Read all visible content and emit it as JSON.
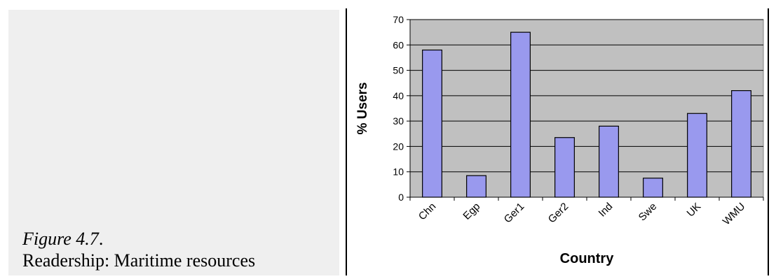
{
  "caption": {
    "figure": "Figure 4.7",
    "dot": ".",
    "text": "Readership: Maritime resources"
  },
  "chart_data": {
    "type": "bar",
    "categories": [
      "Chn",
      "Egp",
      "Ger1",
      "Ger2",
      "Ind",
      "Swe",
      "UK",
      "WMU"
    ],
    "values": [
      58,
      8.5,
      65,
      23.5,
      28,
      7.5,
      33,
      42
    ],
    "xlabel": "Country",
    "ylabel": "% Users",
    "ylim": [
      0,
      70
    ],
    "yticks": [
      0,
      10,
      20,
      30,
      40,
      50,
      60,
      70
    ],
    "grid": true,
    "legend": "none",
    "colors": {
      "bar": "#9999ee",
      "plot_bg": "#c0c0c0",
      "outline": "#000000"
    }
  }
}
